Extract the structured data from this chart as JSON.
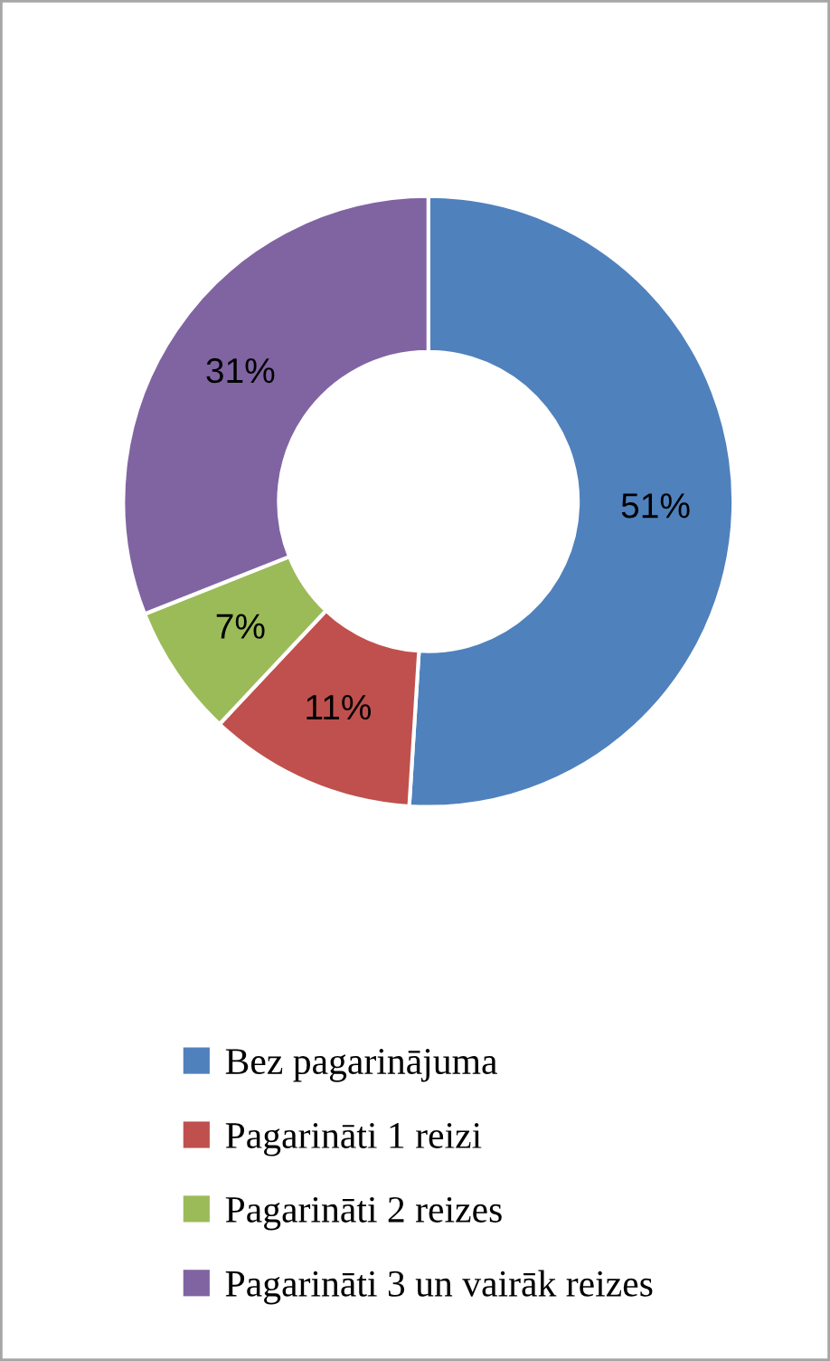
{
  "chart_data": {
    "type": "donut",
    "categories": [
      "Bez pagarinājuma",
      "Pagarināti 1 reizi",
      "Pagarināti 2 reizes",
      "Pagarināti 3 un vairāk reizes"
    ],
    "values": [
      51,
      11,
      7,
      31
    ],
    "colors": [
      "#4f81bd",
      "#c0504d",
      "#9bbb59",
      "#8064a2"
    ],
    "value_labels": [
      "51%",
      "11%",
      "7%",
      "31%"
    ],
    "legend": "bottom"
  }
}
